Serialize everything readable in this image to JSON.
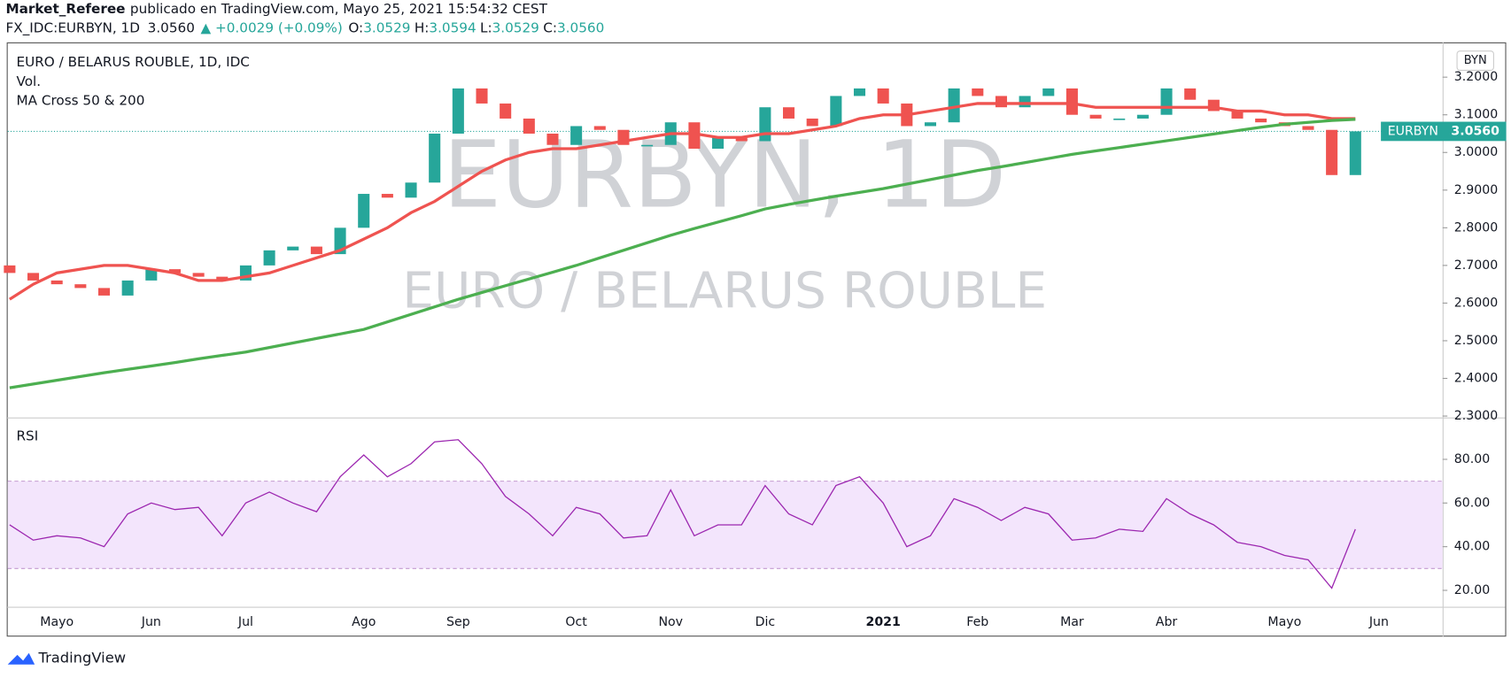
{
  "header": {
    "author": "Market_Referee",
    "published": "publicado en TradingView.com, Mayo 25, 2021 15:54:32 CEST",
    "symbol": "FX_IDC:EURBYN, 1D",
    "last": "3.0560",
    "change": "▲ +0.0029 (+0.09%)",
    "ohlc": [
      {
        "label": "O:",
        "value": "3.0529"
      },
      {
        "label": "H:",
        "value": "3.0594"
      },
      {
        "label": "L:",
        "value": "3.0529"
      },
      {
        "label": "C:",
        "value": "3.0560"
      }
    ]
  },
  "vol_label": "Vol.",
  "indicator_label": "MA Cross 50 & 200",
  "currency": "BYN",
  "ticker": "EURBYN",
  "watermark": [
    "EURBYN, 1D",
    "EURO / BELARUS ROUBLE"
  ],
  "footer": "TradingView",
  "chart_data": [
    {
      "type": "candlestick",
      "title": "EURO / BELARUS ROUBLE, 1D, IDC",
      "categories": [
        null,
        null,
        "Mayo",
        null,
        null,
        null,
        "Jun",
        null,
        null,
        null,
        "Jul",
        null,
        null,
        null,
        null,
        "Ago",
        null,
        null,
        null,
        "Sep",
        null,
        null,
        null,
        null,
        "Oct",
        null,
        null,
        null,
        "Nov",
        null,
        null,
        null,
        "Dic",
        null,
        null,
        null,
        null,
        "2021",
        null,
        null,
        null,
        "Feb",
        null,
        null,
        null,
        "Mar",
        null,
        null,
        null,
        "Abr",
        null,
        null,
        null,
        null,
        "Mayo",
        null,
        null,
        null,
        "Jun",
        null
      ],
      "open": [
        2.7,
        2.68,
        2.66,
        2.65,
        2.64,
        2.62,
        2.66,
        2.69,
        2.68,
        2.67,
        2.66,
        2.7,
        2.74,
        2.75,
        2.73,
        2.8,
        2.89,
        2.88,
        2.92,
        3.05,
        3.17,
        3.13,
        3.09,
        3.05,
        3.02,
        3.07,
        3.06,
        3.02,
        3.02,
        3.08,
        3.01,
        3.04,
        3.03,
        3.12,
        3.09,
        3.07,
        3.15,
        3.17,
        3.13,
        3.07,
        3.08,
        3.17,
        3.15,
        3.12,
        3.15,
        3.17,
        3.1,
        3.09,
        3.09,
        3.1,
        3.17,
        3.14,
        3.11,
        3.09,
        3.08,
        3.07,
        3.06,
        2.94,
        null,
        null
      ],
      "close": [
        2.68,
        2.66,
        2.65,
        2.64,
        2.62,
        2.66,
        2.69,
        2.68,
        2.67,
        2.66,
        2.7,
        2.74,
        2.75,
        2.73,
        2.8,
        2.89,
        2.88,
        2.92,
        3.05,
        3.17,
        3.13,
        3.09,
        3.05,
        3.02,
        3.07,
        3.06,
        3.02,
        3.02,
        3.08,
        3.01,
        3.04,
        3.03,
        3.12,
        3.09,
        3.07,
        3.15,
        3.17,
        3.13,
        3.07,
        3.08,
        3.17,
        3.15,
        3.12,
        3.15,
        3.17,
        3.1,
        3.09,
        3.09,
        3.1,
        3.17,
        3.14,
        3.11,
        3.09,
        3.08,
        3.07,
        3.06,
        2.94,
        3.056,
        null,
        null
      ],
      "up_color": "#26a69a",
      "down_color": "#ef5350",
      "ma_fast": {
        "color": "#ef5350",
        "values": [
          2.61,
          2.65,
          2.68,
          2.69,
          2.7,
          2.7,
          2.69,
          2.68,
          2.66,
          2.66,
          2.67,
          2.68,
          2.7,
          2.72,
          2.74,
          2.77,
          2.8,
          2.84,
          2.87,
          2.91,
          2.95,
          2.98,
          3.0,
          3.01,
          3.01,
          3.02,
          3.03,
          3.04,
          3.05,
          3.05,
          3.04,
          3.04,
          3.05,
          3.05,
          3.06,
          3.07,
          3.09,
          3.1,
          3.1,
          3.11,
          3.12,
          3.13,
          3.13,
          3.13,
          3.13,
          3.13,
          3.12,
          3.12,
          3.12,
          3.12,
          3.12,
          3.12,
          3.11,
          3.11,
          3.1,
          3.1,
          3.09,
          3.09,
          null,
          null
        ]
      },
      "ma_slow": {
        "color": "#4caf50",
        "values": [
          2.375,
          2.385,
          2.395,
          2.405,
          2.415,
          2.424,
          2.433,
          2.442,
          2.452,
          2.461,
          2.47,
          2.482,
          2.494,
          2.506,
          2.518,
          2.53,
          2.55,
          2.57,
          2.59,
          2.61,
          2.628,
          2.646,
          2.664,
          2.682,
          2.7,
          2.72,
          2.74,
          2.76,
          2.78,
          2.798,
          2.815,
          2.832,
          2.85,
          2.862,
          2.873,
          2.884,
          2.894,
          2.904,
          2.916,
          2.928,
          2.94,
          2.952,
          2.962,
          2.973,
          2.984,
          2.995,
          3.004,
          3.013,
          3.022,
          3.031,
          3.04,
          3.049,
          3.058,
          3.067,
          3.075,
          3.08,
          3.085,
          3.088,
          null,
          null
        ]
      },
      "last_price": {
        "value": 3.056,
        "label": "3.0560"
      },
      "ylim": [
        2.3,
        3.277
      ],
      "yticks": [
        {
          "value": 2.3,
          "label": "2.3000"
        },
        {
          "value": 2.4,
          "label": "2.4000"
        },
        {
          "value": 2.5,
          "label": "2.5000"
        },
        {
          "value": 2.6,
          "label": "2.6000"
        },
        {
          "value": 2.7,
          "label": "2.7000"
        },
        {
          "value": 2.8,
          "label": "2.8000"
        },
        {
          "value": 2.9,
          "label": "2.9000"
        },
        {
          "value": 3.0,
          "label": "3.0000"
        },
        {
          "value": 3.1,
          "label": "3.1000"
        },
        {
          "value": 3.2,
          "label": "3.2000"
        }
      ]
    },
    {
      "type": "line",
      "title": "RSI",
      "color": "#9c27b0",
      "band": [
        30,
        70
      ],
      "band_color": "#f3e5fc",
      "values": [
        50,
        43,
        45,
        44,
        40,
        55,
        60,
        57,
        58,
        45,
        60,
        65,
        60,
        56,
        72,
        82,
        72,
        78,
        88,
        89,
        78,
        63,
        55,
        45,
        58,
        55,
        44,
        45,
        66,
        45,
        50,
        50,
        68,
        55,
        50,
        68,
        72,
        60,
        40,
        45,
        62,
        58,
        52,
        58,
        55,
        43,
        44,
        48,
        47,
        62,
        55,
        50,
        42,
        40,
        36,
        34,
        21,
        48,
        null,
        null
      ],
      "ylim": [
        12.5,
        96.3
      ],
      "yticks": [
        {
          "value": 20,
          "label": "20.00"
        },
        {
          "value": 40,
          "label": "40.00"
        },
        {
          "value": 60,
          "label": "60.00"
        },
        {
          "value": 80,
          "label": "80.00"
        }
      ]
    }
  ]
}
